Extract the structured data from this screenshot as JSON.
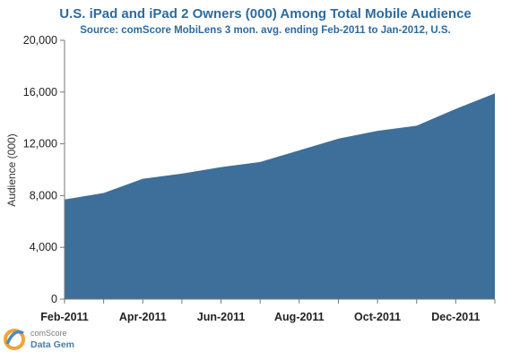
{
  "chart_data": {
    "type": "area",
    "title": "U.S. iPad and iPad 2 Owners (000) Among Total Mobile Audience",
    "subtitle": "Source: comScore MobiLens 3 mon. avg. ending Feb-2011 to Jan-2012, U.S.",
    "ylabel": "Audience (000)",
    "xlabel": "",
    "ylim": [
      0,
      20000
    ],
    "yticks": [
      "0",
      "4,000",
      "8,000",
      "12,000",
      "16,000",
      "20,000"
    ],
    "ytick_values": [
      0,
      4000,
      8000,
      12000,
      16000,
      20000
    ],
    "categories": [
      "Feb-2011",
      "Mar-2011",
      "Apr-2011",
      "May-2011",
      "Jun-2011",
      "Jul-2011",
      "Aug-2011",
      "Sep-2011",
      "Oct-2011",
      "Nov-2011",
      "Dec-2011",
      "Jan-2012"
    ],
    "xtick_labels": [
      "Feb-2011",
      "Apr-2011",
      "Jun-2011",
      "Aug-2011",
      "Oct-2011",
      "Dec-2011"
    ],
    "values": [
      7700,
      8200,
      9300,
      9700,
      10200,
      10600,
      11500,
      12400,
      13000,
      13400,
      14700,
      15900
    ],
    "fill_color": "#3d6f9a",
    "grid": false,
    "legend": "none"
  },
  "branding": {
    "line1": "comScore",
    "line2": "Data Gem"
  }
}
